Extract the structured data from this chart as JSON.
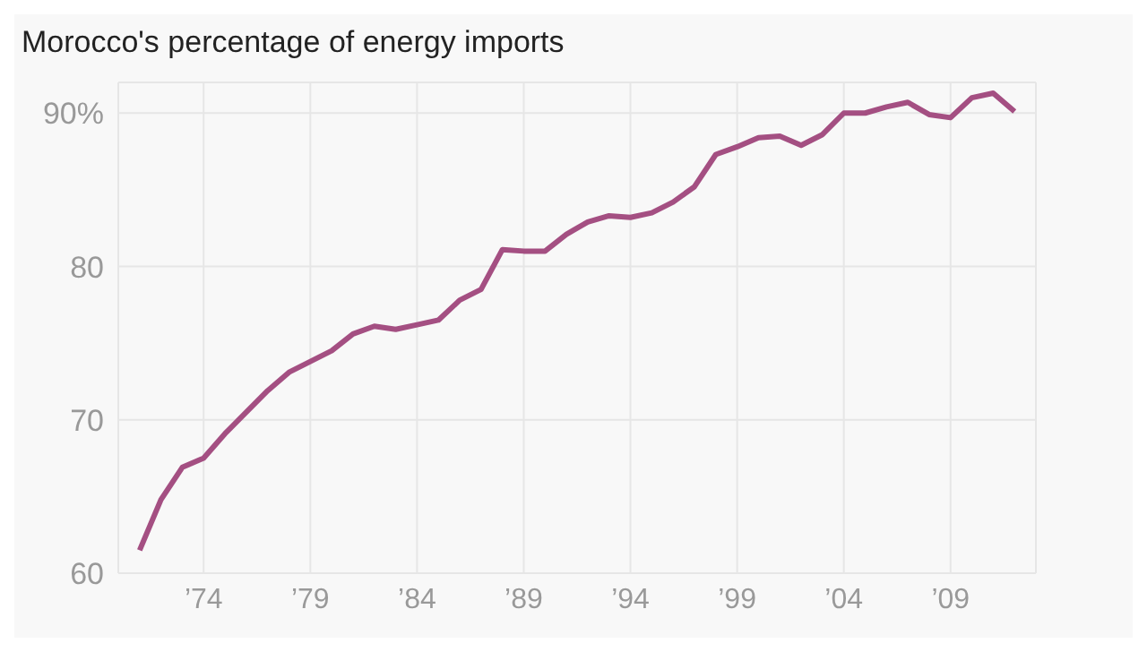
{
  "chart_data": {
    "type": "line",
    "title": "Morocco's percentage of energy imports",
    "x": [
      1971,
      1972,
      1973,
      1974,
      1975,
      1976,
      1977,
      1978,
      1979,
      1980,
      1981,
      1982,
      1983,
      1984,
      1985,
      1986,
      1987,
      1988,
      1989,
      1990,
      1991,
      1992,
      1993,
      1994,
      1995,
      1996,
      1997,
      1998,
      1999,
      2000,
      2001,
      2002,
      2003,
      2004,
      2005,
      2006,
      2007,
      2008,
      2009,
      2010,
      2011,
      2012
    ],
    "series": [
      {
        "color": "#a44f82",
        "values": [
          61.5,
          64.8,
          66.9,
          67.5,
          69.1,
          70.5,
          71.9,
          73.1,
          73.8,
          74.5,
          75.6,
          76.1,
          75.9,
          76.2,
          76.5,
          77.8,
          78.5,
          81.1,
          81.0,
          81.0,
          82.1,
          82.9,
          83.3,
          83.2,
          83.5,
          84.2,
          85.2,
          87.3,
          87.8,
          88.4,
          88.5,
          87.9,
          88.6,
          90.0,
          90.0,
          90.4,
          90.7,
          89.9,
          89.7,
          91.0,
          91.3,
          90.1
        ]
      }
    ],
    "xlim": [
      1970,
      2013
    ],
    "ylim": [
      60,
      92
    ],
    "xticks": [
      {
        "value": 1974,
        "label": "’74"
      },
      {
        "value": 1979,
        "label": "’79"
      },
      {
        "value": 1984,
        "label": "’84"
      },
      {
        "value": 1989,
        "label": "’89"
      },
      {
        "value": 1994,
        "label": "’94"
      },
      {
        "value": 1999,
        "label": "’99"
      },
      {
        "value": 2004,
        "label": "’04"
      },
      {
        "value": 2009,
        "label": "’09"
      }
    ],
    "yticks": [
      60,
      70,
      80,
      {
        "value": 90,
        "label": "90%"
      }
    ],
    "grid": true,
    "marker": "none",
    "line_style": "solid"
  }
}
